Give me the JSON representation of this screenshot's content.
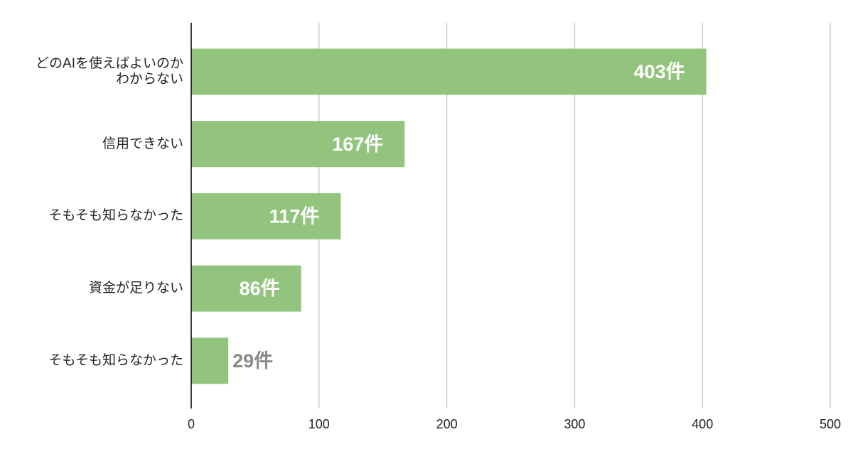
{
  "chart_data": {
    "type": "bar",
    "orientation": "horizontal",
    "categories": [
      "どのAIを使えばよいのか\nわからない",
      "信用できない",
      "そもそも知らなかった",
      "資金が足りない",
      "そもそも知らなかった"
    ],
    "values": [
      403,
      167,
      117,
      86,
      29
    ],
    "value_labels": [
      "403件",
      "167件",
      "117件",
      "86件",
      "29件"
    ],
    "color": "#93c47d",
    "xlim": [
      0,
      500
    ],
    "xticks": [
      0,
      100,
      200,
      300,
      400,
      500
    ],
    "grid": true
  }
}
